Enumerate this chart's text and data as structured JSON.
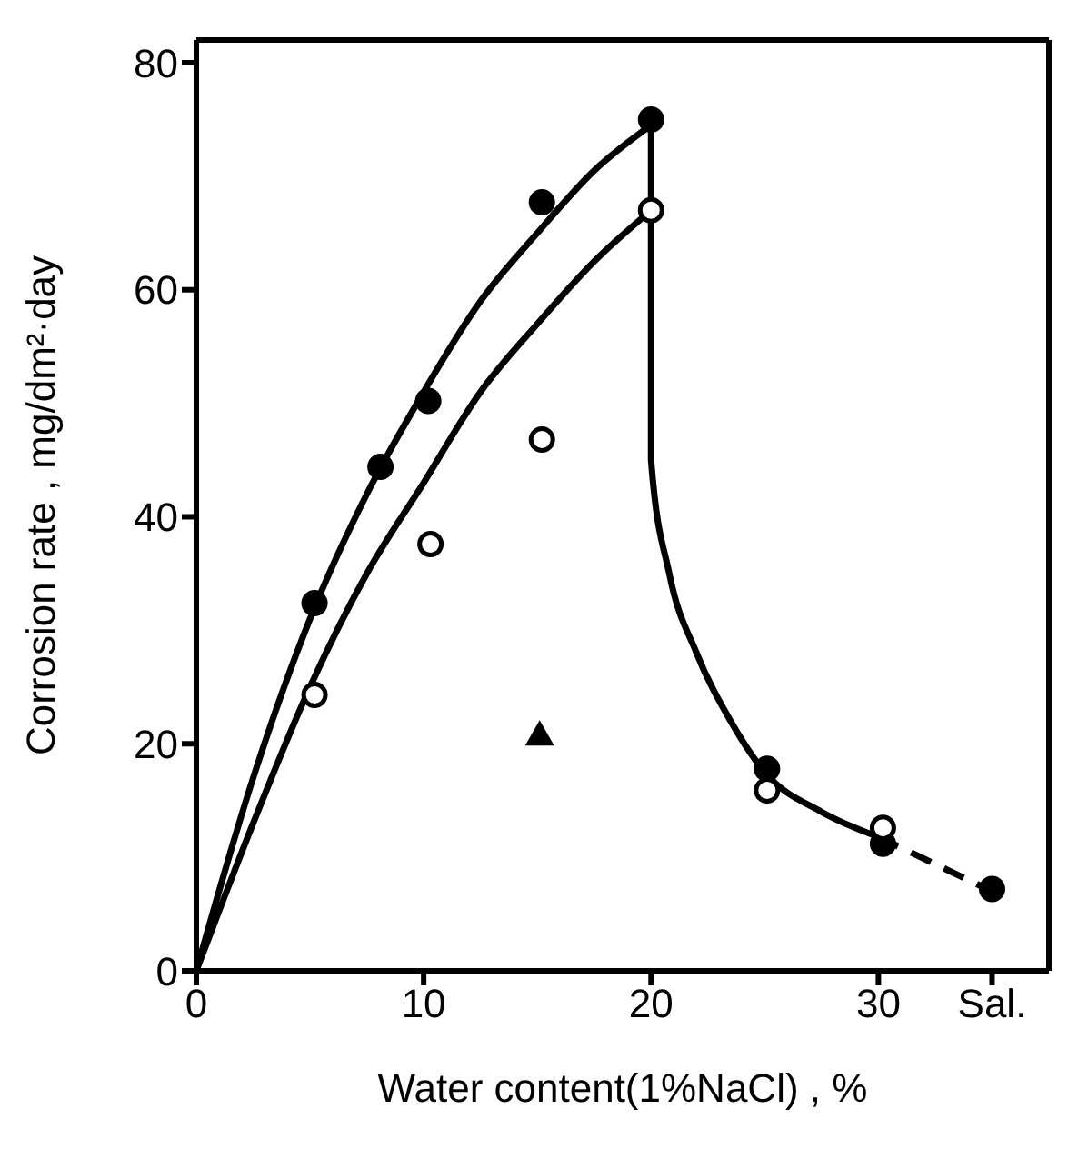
{
  "chart_data": {
    "type": "scatter",
    "xlabel": "Water content(1%NaCl) , %",
    "ylabel": "Corrosion rate , mg/dm²·day",
    "xlim": [
      0,
      37.5
    ],
    "ylim": [
      0,
      82
    ],
    "xticks": [
      0,
      10,
      20,
      30,
      {
        "value": 35,
        "label": "Sal."
      }
    ],
    "yticks": [
      0,
      20,
      40,
      60,
      80
    ],
    "grid": false,
    "legend": false,
    "series": [
      {
        "marker": "circle",
        "color": "#000000",
        "x": [
          5.2,
          8.1,
          10.2,
          15.2,
          20,
          25.1,
          30.2,
          35
        ],
        "values": [
          32.4,
          44.4,
          50.2,
          67.7,
          75,
          17.8,
          11.2,
          7.2
        ]
      },
      {
        "marker": "circle",
        "color": "#000000",
        "x": [
          5.2,
          10.3,
          15.2,
          20,
          25.1,
          30.2
        ],
        "values": [
          24.3,
          37.6,
          46.8,
          67,
          15.9,
          12.6
        ]
      },
      {
        "marker": "triangle",
        "color": "#000000",
        "x": [
          15.1
        ],
        "values": [
          20.8
        ]
      },
      {
        "type": "line",
        "line_style": "solid",
        "color": "#000000",
        "x": [
          0,
          2.5,
          5,
          7.5,
          10,
          12.5,
          15,
          17.5,
          20
        ],
        "values": [
          0,
          17,
          31,
          42,
          51,
          59,
          65,
          70.5,
          74.5
        ]
      },
      {
        "type": "line",
        "line_style": "solid",
        "color": "#000000",
        "x": [
          0,
          2.5,
          5,
          7.5,
          10,
          12.5,
          15,
          17.5,
          20
        ],
        "values": [
          0,
          13,
          25,
          35,
          43,
          51,
          57,
          62.5,
          67
        ]
      },
      {
        "type": "line",
        "line_style": "solid",
        "color": "#000000",
        "x": [
          20,
          20,
          20.8,
          22,
          23.5,
          25,
          27.5,
          30
        ],
        "values": [
          74.5,
          45,
          35,
          28,
          22,
          17.5,
          14,
          11.8
        ]
      },
      {
        "type": "line",
        "line_style": "dashed",
        "color": "#000000",
        "x": [
          30,
          35
        ],
        "values": [
          11.8,
          7
        ]
      }
    ]
  }
}
